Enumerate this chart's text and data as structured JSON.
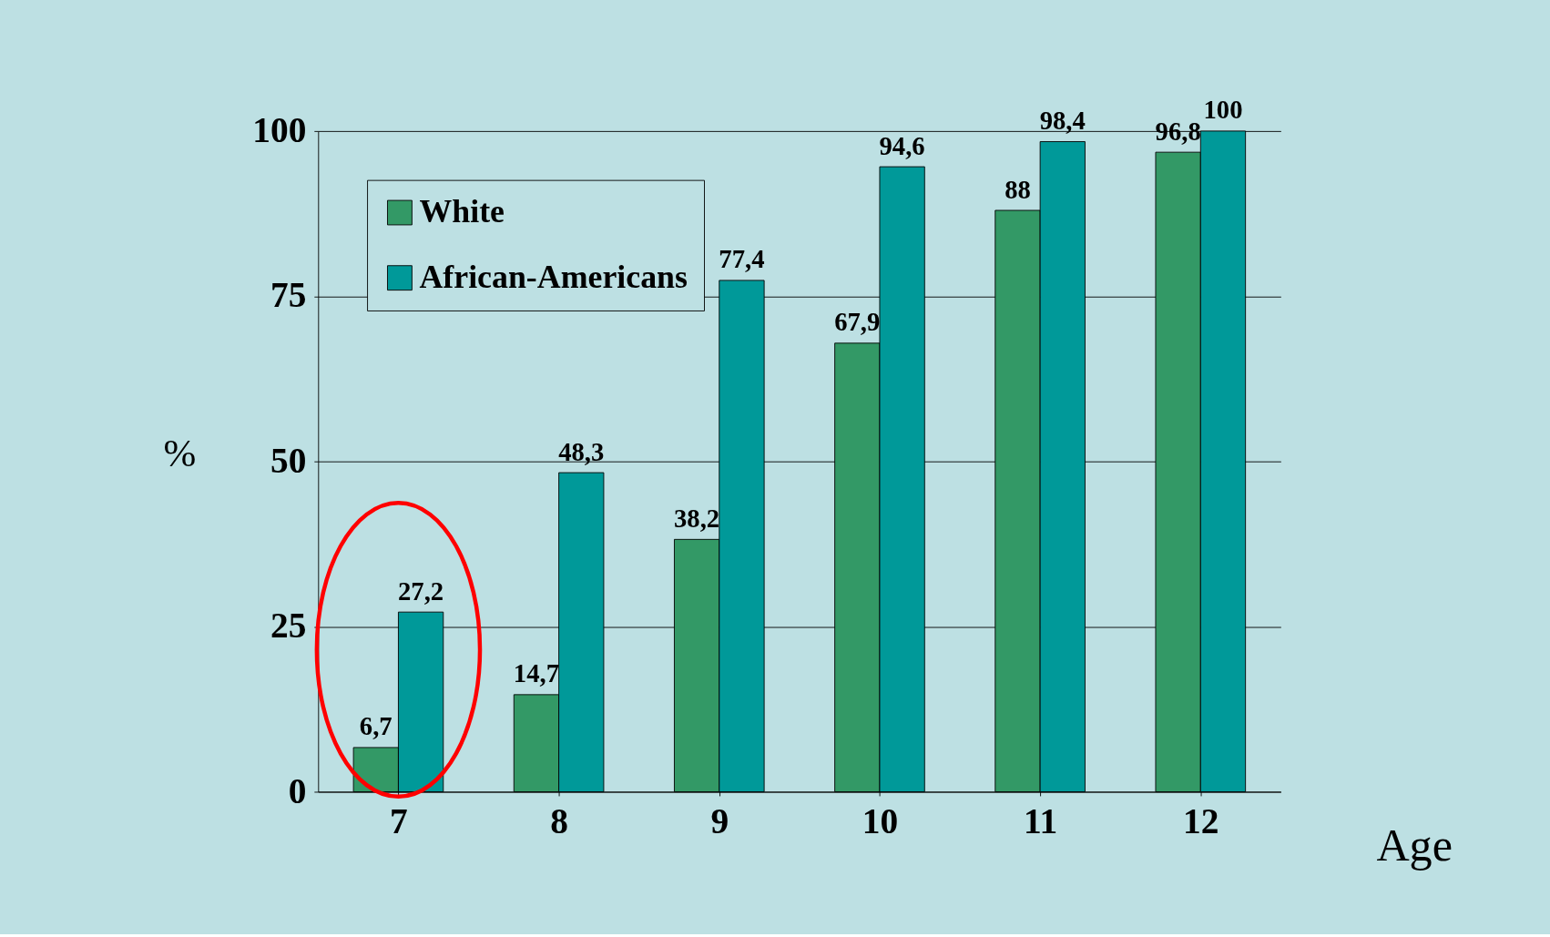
{
  "chart_data": {
    "type": "bar",
    "xlabel": "Age",
    "ylabel": "%",
    "categories": [
      "7",
      "8",
      "9",
      "10",
      "11",
      "12"
    ],
    "series": [
      {
        "name": "White",
        "color": "#339966",
        "values": [
          6.7,
          14.7,
          38.2,
          67.9,
          88,
          96.8
        ],
        "value_labels": [
          "6,7",
          "14,7",
          "38,2",
          "67,9",
          "88",
          "96,8"
        ]
      },
      {
        "name": "African-Americans",
        "color": "#009999",
        "values": [
          27.2,
          48.3,
          77.4,
          94.6,
          98.4,
          100
        ],
        "value_labels": [
          "27,2",
          "48,3",
          "77,4",
          "94,6",
          "98,4",
          "100"
        ]
      }
    ],
    "ylim": [
      0,
      100
    ],
    "yticks": [
      0,
      25,
      50,
      75,
      100
    ],
    "grid": "y",
    "legend": "top left"
  }
}
